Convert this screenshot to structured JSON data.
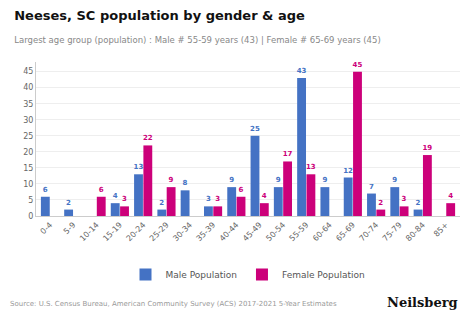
{
  "chart_data": {
    "type": "bar",
    "title": "Neeses, SC population by gender & age",
    "subtitle": "Largest age group (population) : Male # 55-59 years (43) | Female # 65-69 years (45)",
    "categories": [
      "0-4",
      "5-9",
      "10-14",
      "15-19",
      "20-24",
      "25-29",
      "30-34",
      "35-39",
      "40-44",
      "45-49",
      "50-54",
      "55-59",
      "60-64",
      "65-69",
      "70-74",
      "75-79",
      "80-84",
      "85+"
    ],
    "series": [
      {
        "name": "Male Population",
        "color": "#4472C4",
        "values": [
          6,
          2,
          0,
          4,
          13,
          2,
          8,
          3,
          9,
          25,
          9,
          43,
          9,
          12,
          7,
          9,
          2,
          0
        ],
        "value_labels": [
          "6",
          "2",
          null,
          "4",
          "13",
          "2",
          "8",
          "3",
          "9",
          "25",
          "9",
          "43",
          "9",
          "12",
          "7",
          "9",
          "2",
          null
        ]
      },
      {
        "name": "Female Population",
        "color": "#CC007A",
        "values": [
          0,
          0,
          6,
          3,
          22,
          9,
          0,
          3,
          6,
          4,
          17,
          13,
          0,
          45,
          2,
          3,
          19,
          4
        ],
        "value_labels": [
          null,
          null,
          "6",
          "3",
          "22",
          "9",
          null,
          "3",
          "6",
          "4",
          "17",
          "13",
          null,
          "45",
          "2",
          "3",
          "19",
          "4"
        ]
      }
    ],
    "ylim": [
      0,
      48
    ],
    "yticks": [
      0,
      5,
      10,
      15,
      20,
      25,
      30,
      35,
      40,
      45
    ],
    "grid": true,
    "legend": "bottom",
    "data_labels": true,
    "annotations": [
      "Source: U.S. Census Bureau, American Community Survey (ACS) 2017-2021 5-Year Estimates",
      "Neilsberg"
    ]
  }
}
